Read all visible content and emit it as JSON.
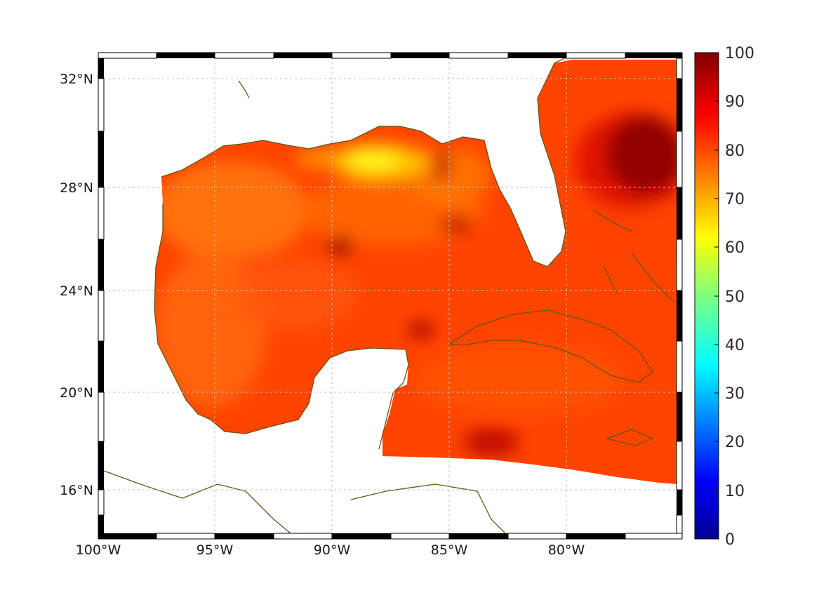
{
  "map": {
    "longitude_ticks": [
      "100°W",
      "95°W",
      "90°W",
      "85°W",
      "80°W"
    ],
    "latitude_ticks": [
      "32°N",
      "28°N",
      "24°N",
      "20°N",
      "16°N"
    ],
    "colorbar": {
      "ticks": [
        "100",
        "90",
        "80",
        "70",
        "60",
        "50",
        "40",
        "30",
        "20",
        "10",
        "0"
      ],
      "range": [
        0,
        100
      ],
      "colormap": "jet"
    },
    "colors": {
      "land_fill": "#ffffff",
      "coastline": "#6b5314",
      "grid": "#bdbdbd",
      "ocean_low": "#ff6a00",
      "ocean_mid": "#ff3a00",
      "ocean_high": "#8b0000",
      "hotspot_yellow": "#ffee00"
    }
  }
}
